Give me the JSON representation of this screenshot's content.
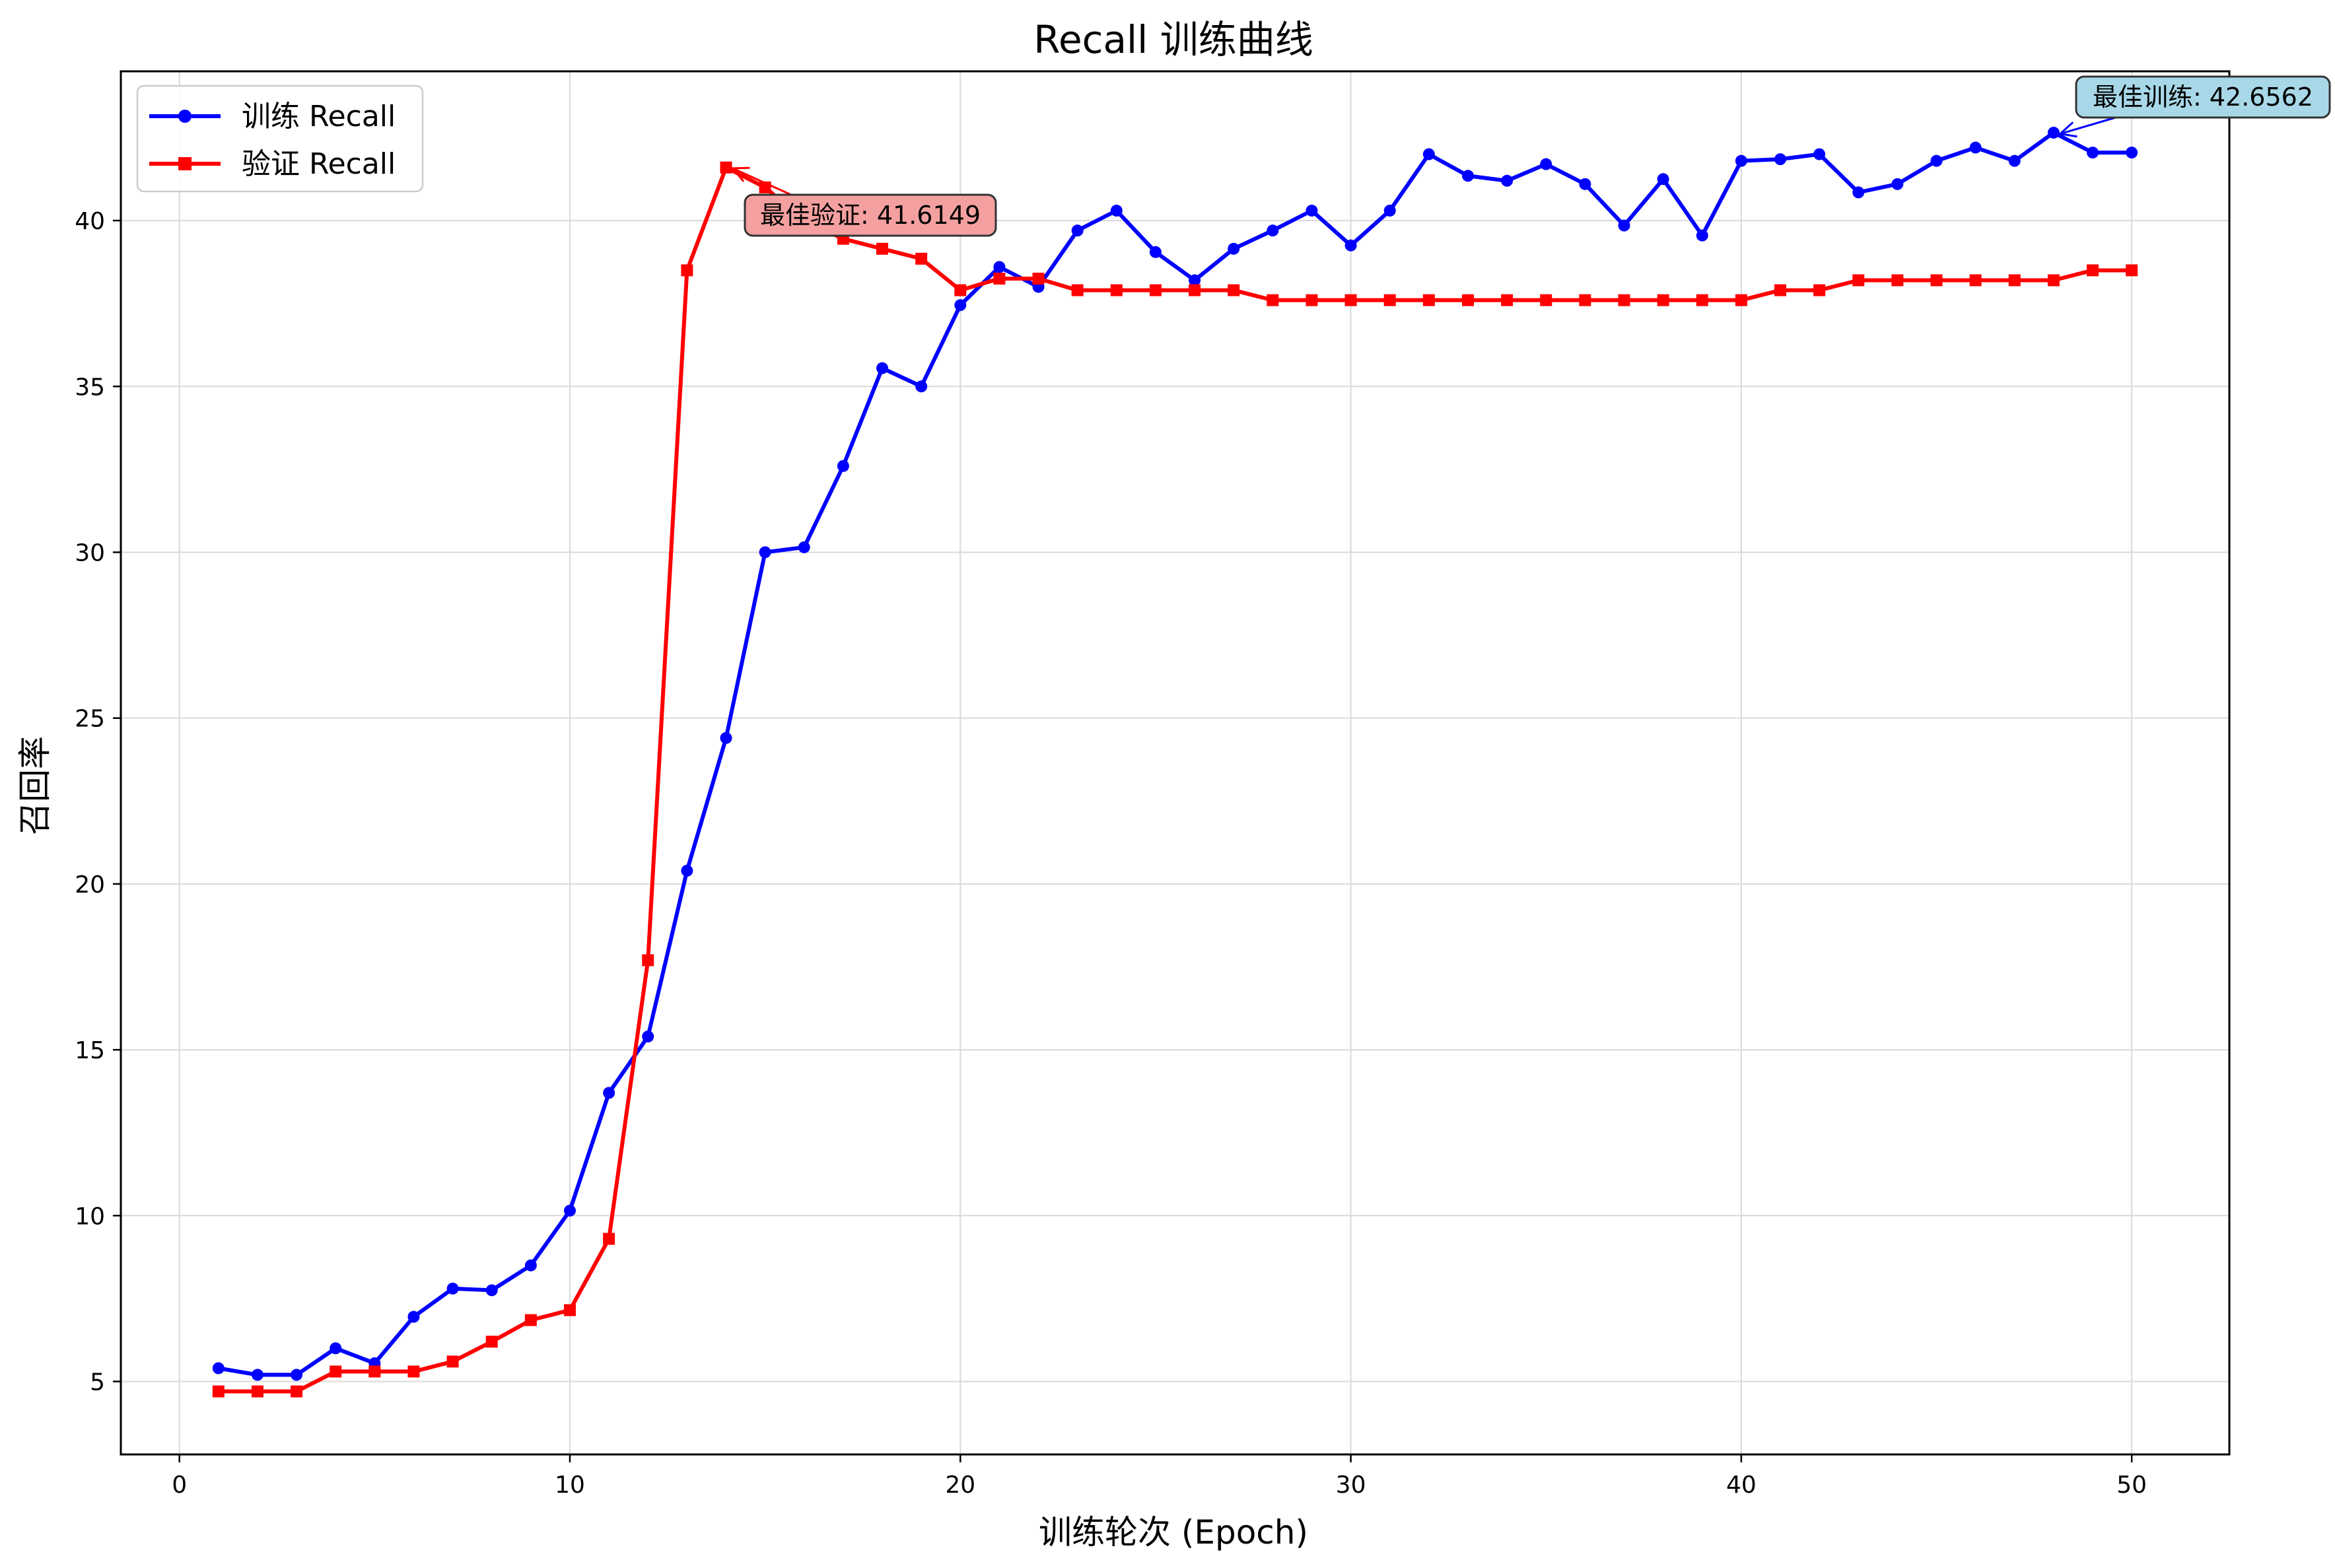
{
  "chart_data": {
    "type": "line",
    "title": "Recall 训练曲线",
    "xlabel": "训练轮次 (Epoch)",
    "ylabel": "召回率",
    "xlim": [
      -1.5,
      52.5
    ],
    "ylim": [
      2.8,
      44.5
    ],
    "xticks": [
      0,
      10,
      20,
      30,
      40,
      50
    ],
    "yticks": [
      5,
      10,
      15,
      20,
      25,
      30,
      35,
      40
    ],
    "grid": true,
    "legend": "upper-left",
    "x": [
      1,
      2,
      3,
      4,
      5,
      6,
      7,
      8,
      9,
      10,
      11,
      12,
      13,
      14,
      15,
      16,
      17,
      18,
      19,
      20,
      21,
      22,
      23,
      24,
      25,
      26,
      27,
      28,
      29,
      30,
      31,
      32,
      33,
      34,
      35,
      36,
      37,
      38,
      39,
      40,
      41,
      42,
      43,
      44,
      45,
      46,
      47,
      48,
      49,
      50
    ],
    "series": [
      {
        "name": "训练 Recall",
        "color": "#0000ff",
        "marker": "circle",
        "values": [
          5.4,
          5.2,
          5.2,
          6.0,
          5.55,
          6.95,
          7.8,
          7.75,
          8.5,
          10.15,
          13.7,
          15.4,
          20.4,
          24.4,
          30.0,
          30.15,
          32.6,
          35.55,
          35.0,
          37.45,
          38.6,
          38.0,
          39.7,
          40.3,
          39.05,
          38.2,
          39.15,
          39.7,
          40.3,
          39.25,
          40.3,
          42.0,
          41.35,
          41.2,
          41.7,
          41.1,
          39.85,
          41.25,
          39.55,
          41.8,
          41.85,
          42.0,
          40.85,
          41.1,
          41.8,
          42.2,
          41.8,
          42.65,
          42.05,
          42.05
        ]
      },
      {
        "name": "验证 Recall",
        "color": "#ff0000",
        "marker": "square",
        "values": [
          4.7,
          4.7,
          4.7,
          5.3,
          5.3,
          5.3,
          5.6,
          6.2,
          6.85,
          7.15,
          9.3,
          17.7,
          38.5,
          41.6,
          41.0,
          40.0,
          39.45,
          39.15,
          38.85,
          37.9,
          38.25,
          38.25,
          37.9,
          37.9,
          37.9,
          37.9,
          37.9,
          37.6,
          37.6,
          37.6,
          37.6,
          37.6,
          37.6,
          37.6,
          37.6,
          37.6,
          37.6,
          37.6,
          37.6,
          37.6,
          37.9,
          37.9,
          38.2,
          38.2,
          38.2,
          38.2,
          38.2,
          38.2,
          38.5,
          38.5
        ]
      }
    ],
    "annotations": [
      {
        "text": "最佳验证: 41.6149",
        "x": 14,
        "y": 41.6149,
        "series": "验证 Recall",
        "box_color": "#f4a0a0"
      },
      {
        "text": "最佳训练: 42.6562",
        "x": 48,
        "y": 42.6562,
        "series": "训练 Recall",
        "box_color": "#a8d8e8"
      }
    ]
  }
}
